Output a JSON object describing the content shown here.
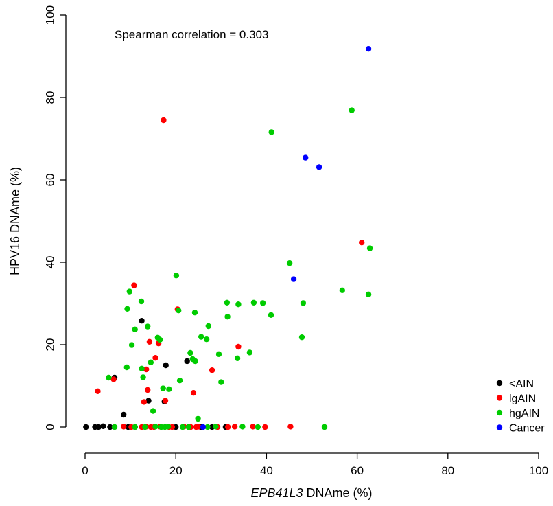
{
  "chart_data": {
    "type": "scatter",
    "title": "",
    "annotation": "Spearman correlation = 0.303",
    "xlabel_italic": "EPB41L3",
    "xlabel_rest": " DNAme (%)",
    "ylabel": "HPV16 DNAme (%)",
    "xlim": [
      0,
      100
    ],
    "ylim": [
      0,
      100
    ],
    "xticks": [
      0,
      20,
      40,
      60,
      80,
      100
    ],
    "yticks": [
      0,
      20,
      40,
      60,
      80,
      100
    ],
    "grid": false,
    "legend_position": "bottom-right",
    "series": [
      {
        "name": "<AIN",
        "color": "#000000",
        "points": [
          [
            0.2,
            0
          ],
          [
            2.2,
            0
          ],
          [
            3,
            0
          ],
          [
            4,
            0.2
          ],
          [
            5.5,
            0
          ],
          [
            8.5,
            3
          ],
          [
            9.5,
            0
          ],
          [
            11,
            0
          ],
          [
            6.5,
            12
          ],
          [
            12.5,
            25.8
          ],
          [
            14,
            6.4
          ],
          [
            17.5,
            6.2
          ],
          [
            17.8,
            15
          ],
          [
            22.5,
            16
          ],
          [
            20,
            0
          ],
          [
            25.5,
            0
          ],
          [
            28,
            0
          ],
          [
            31,
            0
          ]
        ]
      },
      {
        "name": "lgAIN",
        "color": "#ff0000",
        "points": [
          [
            2.8,
            8.7
          ],
          [
            6.3,
            11.6
          ],
          [
            10.8,
            34.4
          ],
          [
            13,
            6.1
          ],
          [
            13.5,
            14
          ],
          [
            13.8,
            9
          ],
          [
            14.2,
            20.7
          ],
          [
            15.5,
            16.8
          ],
          [
            16.2,
            20.3
          ],
          [
            17.3,
            74.5
          ],
          [
            17.7,
            6.4
          ],
          [
            20.4,
            28.6
          ],
          [
            23.9,
            8.3
          ],
          [
            28,
            13.8
          ],
          [
            33.8,
            19.5
          ],
          [
            61,
            44.8
          ],
          [
            8.5,
            0.1
          ],
          [
            10.2,
            0
          ],
          [
            12.5,
            0
          ],
          [
            13.5,
            0.1
          ],
          [
            14.5,
            0
          ],
          [
            15.2,
            0
          ],
          [
            16.5,
            0.1
          ],
          [
            18.5,
            0
          ],
          [
            19.2,
            0
          ],
          [
            21.8,
            0.1
          ],
          [
            23.3,
            0
          ],
          [
            24.5,
            0
          ],
          [
            25,
            0.1
          ],
          [
            29.2,
            0
          ],
          [
            31.5,
            0
          ],
          [
            33,
            0.1
          ],
          [
            37,
            0.1
          ],
          [
            39.7,
            0
          ],
          [
            45.3,
            0.1
          ]
        ]
      },
      {
        "name": "hgAIN",
        "color": "#00cc00",
        "points": [
          [
            5.2,
            12
          ],
          [
            9.2,
            14.5
          ],
          [
            9.3,
            28.7
          ],
          [
            9.8,
            32.9
          ],
          [
            10.3,
            19.9
          ],
          [
            11,
            23.7
          ],
          [
            12.4,
            30.5
          ],
          [
            12.5,
            14.2
          ],
          [
            12.8,
            12.1
          ],
          [
            13.8,
            24.4
          ],
          [
            14.5,
            15.7
          ],
          [
            15,
            3.9
          ],
          [
            16,
            21.7
          ],
          [
            16.5,
            21.2
          ],
          [
            17.2,
            9.4
          ],
          [
            18.5,
            9.2
          ],
          [
            20.1,
            36.8
          ],
          [
            20.6,
            28.3
          ],
          [
            20.9,
            11.3
          ],
          [
            23.2,
            18
          ],
          [
            23.7,
            16.5
          ],
          [
            24.2,
            27.8
          ],
          [
            24.3,
            16
          ],
          [
            24.9,
            2
          ],
          [
            25.6,
            21.9
          ],
          [
            26.8,
            21.3
          ],
          [
            27.2,
            24.5
          ],
          [
            29.5,
            17.7
          ],
          [
            30,
            10.9
          ],
          [
            31.3,
            30.2
          ],
          [
            31.4,
            26.8
          ],
          [
            33.8,
            29.8
          ],
          [
            33.6,
            16.7
          ],
          [
            36.3,
            18.1
          ],
          [
            37.2,
            30.2
          ],
          [
            39.2,
            30.1
          ],
          [
            41,
            27.2
          ],
          [
            41.1,
            71.6
          ],
          [
            45.1,
            39.8
          ],
          [
            47.8,
            21.8
          ],
          [
            48.1,
            30.1
          ],
          [
            56.7,
            33.2
          ],
          [
            58.8,
            76.9
          ],
          [
            62.5,
            32.2
          ],
          [
            62.8,
            43.4
          ],
          [
            6.5,
            0
          ],
          [
            11,
            0
          ],
          [
            13.2,
            0
          ],
          [
            15.5,
            0.1
          ],
          [
            16.8,
            0
          ],
          [
            17.6,
            0
          ],
          [
            18.3,
            0.1
          ],
          [
            21.5,
            0
          ],
          [
            22.8,
            0
          ],
          [
            27,
            0
          ],
          [
            28.8,
            0.1
          ],
          [
            34.7,
            0.1
          ],
          [
            38.1,
            0
          ],
          [
            52.8,
            0
          ]
        ]
      },
      {
        "name": "Cancer",
        "color": "#0000ff",
        "points": [
          [
            26,
            0
          ],
          [
            46,
            35.9
          ],
          [
            48.6,
            65.4
          ],
          [
            51.6,
            63.1
          ],
          [
            62.5,
            91.8
          ]
        ]
      }
    ]
  }
}
